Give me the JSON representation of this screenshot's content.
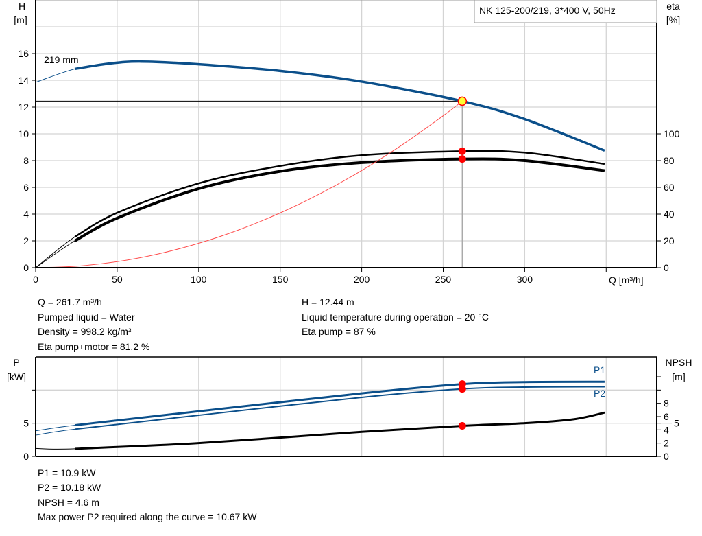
{
  "header": {
    "product": "NK 125-200/219, 3*400 V, 50Hz"
  },
  "colors": {
    "head": "#0b4f8a",
    "power": "#0b4f8a",
    "eta": "#000000",
    "npsh": "#000000",
    "system": "#ff4d4d",
    "duty_point": "#ffff33",
    "marker": "#ff0000"
  },
  "info_top": {
    "left": [
      "Q = 261.7 m³/h",
      "Pumped liquid = Water",
      "Density = 998.2 kg/m³",
      "Eta pump+motor = 81.2 %"
    ],
    "right": [
      "H = 12.44 m",
      "Liquid temperature during operation = 20 °C",
      "Eta pump = 87 %"
    ]
  },
  "info_bottom": [
    "P1 = 10.9 kW",
    "P2 = 10.18 kW",
    "NPSH = 4.6 m",
    "Max power P2 required along the curve = 10.67 kW"
  ],
  "chart_data": [
    {
      "type": "line",
      "title": "",
      "xlabel": "Q [m³/h]",
      "ylabel": "H\n[m]",
      "y2label": "eta\n[%]",
      "xlim": [
        0,
        381
      ],
      "ylim": [
        0,
        20
      ],
      "y2lim": [
        0,
        200
      ],
      "xticks": [
        0,
        50,
        100,
        150,
        200,
        250,
        300
      ],
      "yticks": [
        0,
        2,
        4,
        6,
        8,
        10,
        12,
        14,
        16
      ],
      "y2ticks": [
        0,
        20,
        40,
        60,
        80,
        100
      ],
      "grid": true,
      "duty_point": {
        "Q": 261.7,
        "H": 12.44,
        "eta_pump": 87,
        "eta_pump_motor": 81.2
      },
      "series": [
        {
          "name": "219 mm",
          "axis": "H",
          "x": [
            0,
            24,
            45,
            65,
            100,
            150,
            200,
            261.7,
            300,
            349
          ],
          "y": [
            13.85,
            14.85,
            15.25,
            15.4,
            15.2,
            14.7,
            13.9,
            12.44,
            11.1,
            8.75
          ],
          "thick_from": 24
        },
        {
          "axis": "eta",
          "x": [
            0,
            24,
            50,
            100,
            150,
            200,
            261.7,
            300,
            349
          ],
          "y": [
            0,
            23,
            41,
            63,
            76,
            84,
            87,
            86,
            77.5
          ],
          "thick_from": 24
        },
        {
          "axis": "eta",
          "x": [
            0,
            24,
            50,
            100,
            150,
            200,
            261.7,
            300,
            349
          ],
          "y": [
            0,
            20,
            37,
            59,
            72,
            78.5,
            81.2,
            80,
            72.5
          ],
          "thick_from": 24,
          "bold": true
        },
        {
          "axis": "H",
          "system_curve": true,
          "x": [
            0,
            25,
            50,
            75,
            100,
            125,
            150,
            175,
            200,
            225,
            250,
            261.7
          ],
          "y": [
            0,
            0.11,
            0.45,
            1.02,
            1.82,
            2.84,
            4.09,
            5.56,
            7.26,
            9.19,
            11.35,
            12.44
          ]
        }
      ]
    },
    {
      "type": "line",
      "title": "",
      "ylabel": "P\n[kW]",
      "y2label": "NPSH\n[m]",
      "xlim": [
        0,
        381
      ],
      "ylim": [
        0,
        15
      ],
      "y2lim": [
        0,
        15
      ],
      "yticks": [
        0,
        5,
        10
      ],
      "yticklabels": [
        "0",
        "5",
        ""
      ],
      "y2ticks": [
        0,
        2,
        4,
        5,
        6,
        8,
        10,
        12
      ],
      "y2ticklabels": [
        "0",
        "2",
        "4",
        "5",
        "6",
        "8",
        "",
        ""
      ],
      "grid": true,
      "series": [
        {
          "name": "P1",
          "axis": "P",
          "x": [
            0,
            24,
            100,
            200,
            261.7,
            300,
            349
          ],
          "y": [
            3.85,
            4.7,
            6.8,
            9.5,
            10.9,
            11.2,
            11.25
          ],
          "thick_from": 24
        },
        {
          "name": "P2",
          "axis": "P",
          "x": [
            0,
            24,
            100,
            200,
            261.7,
            300,
            349
          ],
          "y": [
            3.2,
            4.1,
            6.2,
            8.9,
            10.18,
            10.45,
            10.5
          ],
          "thick_from": 24
        },
        {
          "axis": "NPSH",
          "x": [
            0,
            24,
            100,
            200,
            261.7,
            300,
            330,
            349
          ],
          "y": [
            1.2,
            1.15,
            2.0,
            3.7,
            4.6,
            5.0,
            5.6,
            6.6
          ],
          "thick_from": 24
        }
      ],
      "markers": [
        {
          "Q": 261.7,
          "P1": 10.9
        },
        {
          "Q": 261.7,
          "P2": 10.18
        },
        {
          "Q": 261.7,
          "NPSH": 4.6
        }
      ]
    }
  ]
}
